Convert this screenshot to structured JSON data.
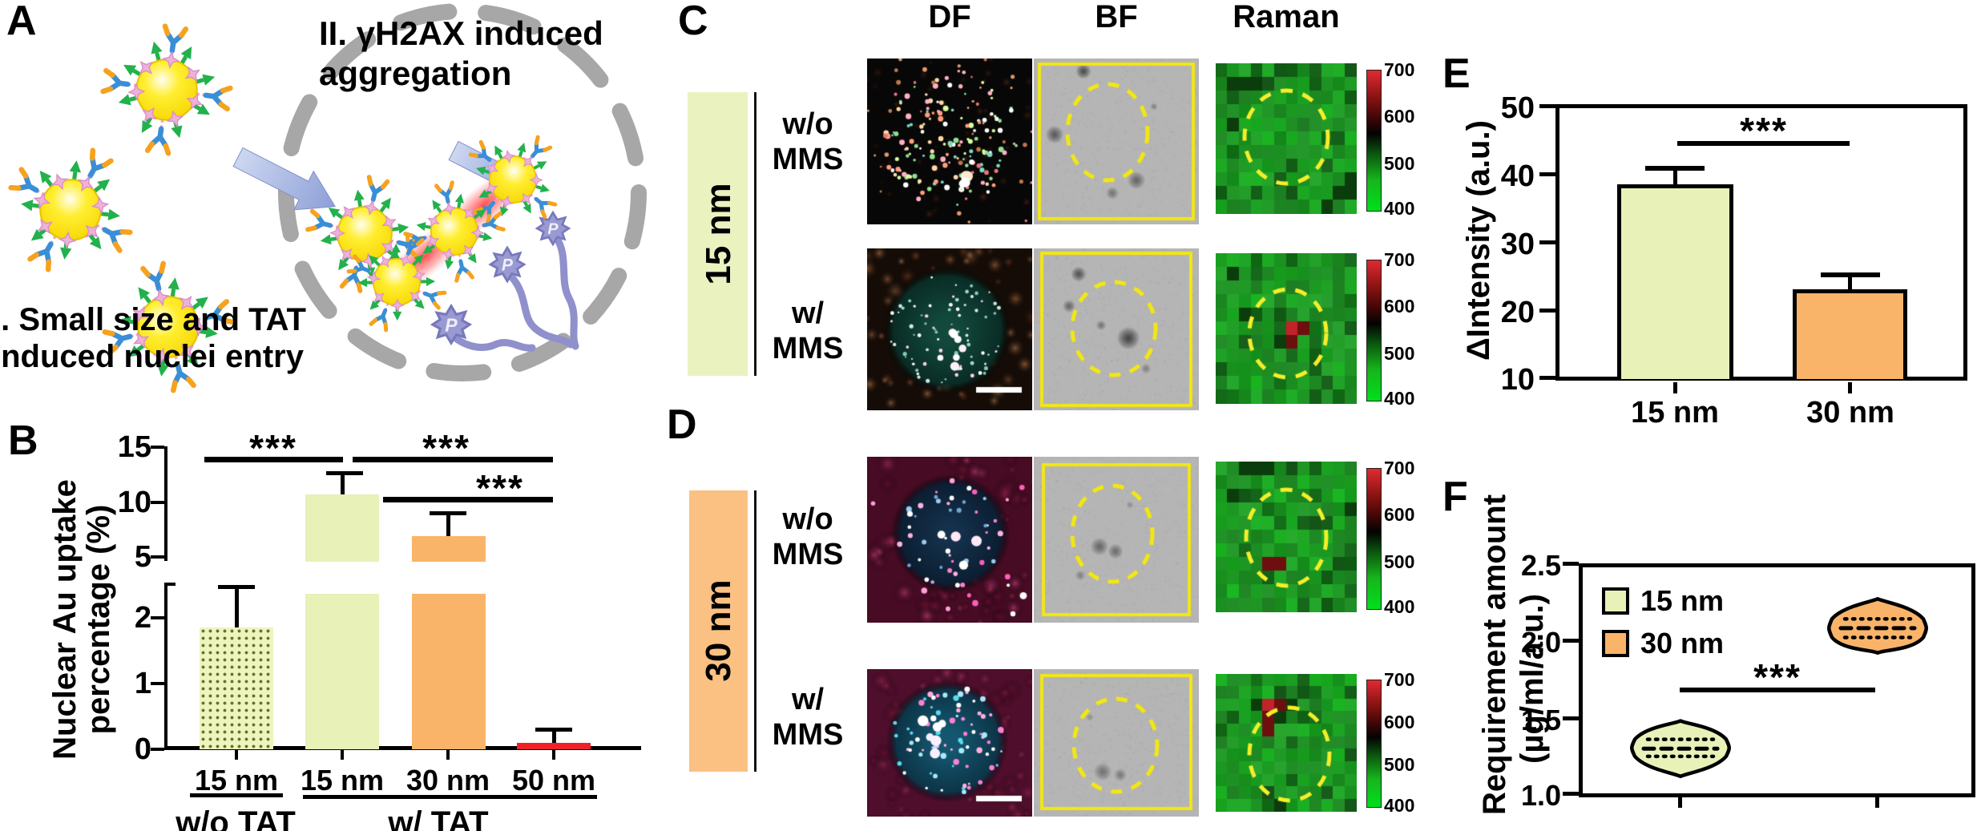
{
  "panel_a": {
    "label": "A",
    "step1_line1": "I. Small size and TAT",
    "step1_line2": "induced nuclei entry",
    "step2_line1": "II. γH2AX induced",
    "step2_line2": "aggregation",
    "p_label": "P"
  },
  "panel_b": {
    "label": "B",
    "ylabel_line1": "Nuclear Au uptake",
    "ylabel_line2": "percentage (%)",
    "yticks_upper": [
      "15",
      "10",
      "5"
    ],
    "yticks_lower": [
      "2",
      "1",
      "0"
    ],
    "xticks": [
      "15 nm",
      "15 nm",
      "30 nm",
      "50 nm"
    ],
    "group1": "w/o TAT",
    "group2": "w/ TAT",
    "sig1": "***",
    "sig2": "***",
    "sig3": "***"
  },
  "panel_c": {
    "label": "C",
    "header_df": "DF",
    "header_bf": "BF",
    "header_raman": "Raman",
    "size_label": "15 nm",
    "row1_line1": "w/o",
    "row1_line2": "MMS",
    "row2_line1": "w/",
    "row2_line2": "MMS",
    "colorbar": [
      "700",
      "600",
      "500",
      "400"
    ]
  },
  "panel_d": {
    "label": "D",
    "size_label": "30 nm",
    "row1_line1": "w/o",
    "row1_line2": "MMS",
    "row2_line1": "w/",
    "row2_line2": "MMS",
    "colorbar": [
      "700",
      "600",
      "500",
      "400"
    ]
  },
  "panel_e": {
    "label": "E",
    "ylabel": "ΔIntensity (a.u.)",
    "yticks": [
      "50",
      "40",
      "30",
      "20",
      "10"
    ],
    "xticks": [
      "15 nm",
      "30 nm"
    ],
    "sig": "***"
  },
  "panel_f": {
    "label": "F",
    "ylabel_line1": "Requirement amount",
    "ylabel_line2": "(µg/ml/a.u.)",
    "yticks": [
      "2.5",
      "2.0",
      "1.5",
      "1.0"
    ],
    "legend": [
      "15 nm",
      "30 nm"
    ],
    "sig": "***"
  },
  "chart_data": [
    {
      "type": "bar",
      "panel": "B",
      "ylabel": "Nuclear Au uptake percentage (%)",
      "categories": [
        "15 nm (w/o TAT)",
        "15 nm (w/ TAT)",
        "30 nm (w/ TAT)",
        "50 nm (w/ TAT)"
      ],
      "values": [
        1.85,
        10.7,
        6.9,
        0.1
      ],
      "errors": [
        0.65,
        1.8,
        2.1,
        0.2
      ],
      "bar_colors": [
        "#edf4be dotted",
        "#e7f1b8",
        "#f9b469",
        "#ee2126"
      ],
      "ylim": [
        0,
        15
      ],
      "yticks": [
        0,
        1,
        2,
        5,
        10,
        15
      ],
      "axis_break": [
        2.6,
        5
      ],
      "group_labels": {
        "w/o TAT": [
          0
        ],
        "w/ TAT": [
          1,
          2,
          3
        ]
      },
      "significance": [
        {
          "between": [
            0,
            1
          ],
          "label": "***"
        },
        {
          "between": [
            1,
            3
          ],
          "label": "***"
        },
        {
          "between": [
            2,
            3
          ],
          "label": "***"
        }
      ]
    },
    {
      "type": "bar",
      "panel": "E",
      "ylabel": "ΔIntensity (a.u.)",
      "categories": [
        "15 nm",
        "30 nm"
      ],
      "values": [
        38.3,
        23.0
      ],
      "errors": [
        2.5,
        2.5
      ],
      "bar_colors": [
        "#e7f1b8",
        "#f9b469"
      ],
      "ylim": [
        10,
        50
      ],
      "yticks": [
        10,
        20,
        30,
        40,
        50
      ],
      "significance": [
        {
          "between": [
            0,
            1
          ],
          "label": "***"
        }
      ]
    },
    {
      "type": "violin",
      "panel": "F",
      "ylabel": "Requirement amount (µg/ml/a.u.)",
      "categories": [
        "15 nm",
        "30 nm"
      ],
      "series": [
        {
          "name": "15 nm",
          "min": 1.12,
          "q1": 1.25,
          "median": 1.3,
          "q3": 1.36,
          "max": 1.48,
          "color": "#e7f1b8"
        },
        {
          "name": "30 nm",
          "min": 1.92,
          "q1": 2.02,
          "median": 2.08,
          "q3": 2.14,
          "max": 2.27,
          "color": "#f9b469"
        }
      ],
      "ylim": [
        1.0,
        2.5
      ],
      "yticks": [
        1.0,
        1.5,
        2.0,
        2.5
      ],
      "legend_position": "top-left",
      "significance": [
        {
          "between": [
            0,
            1
          ],
          "label": "***"
        }
      ]
    }
  ]
}
